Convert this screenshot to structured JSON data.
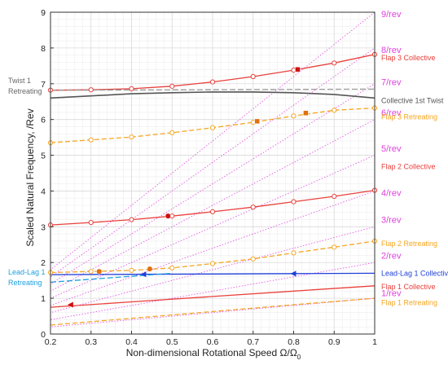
{
  "chart_data": {
    "type": "line",
    "xlabel_main": "Non-dimensional Rotational Speed Ω/Ω",
    "xlabel_sub": "0",
    "ylabel": "Scaled Natural Frequency, /Rev",
    "xlim": [
      0.2,
      1.0
    ],
    "ylim": [
      0,
      9
    ],
    "xticks": [
      "0.2",
      "0.3",
      "0.4",
      "0.5",
      "0.6",
      "0.7",
      "0.8",
      "0.9",
      "1"
    ],
    "yticks": [
      "0",
      "1",
      "2",
      "3",
      "4",
      "5",
      "6",
      "7",
      "8",
      "9"
    ],
    "grid": true,
    "per_rev": [
      {
        "n": 1,
        "label": "1/rev",
        "color": "#e040e0",
        "label_y": 1.15
      },
      {
        "n": 2,
        "label": "2/rev",
        "color": "#e040e0",
        "label_y": 2.2
      },
      {
        "n": 3,
        "label": "3/rev",
        "color": "#e040e0",
        "label_y": 3.2
      },
      {
        "n": 4,
        "label": "4/rev",
        "color": "#e040e0",
        "label_y": 3.95
      },
      {
        "n": 5,
        "label": "5/rev",
        "color": "#e040e0",
        "label_y": 5.2
      },
      {
        "n": 6,
        "label": "6/rev",
        "color": "#e040e0",
        "label_y": 6.2
      },
      {
        "n": 7,
        "label": "7/rev",
        "color": "#e040e0",
        "label_y": 7.05
      },
      {
        "n": 8,
        "label": "8/rev",
        "color": "#e040e0",
        "label_y": 7.95
      },
      {
        "n": 9,
        "label": "9/rev",
        "color": "#e040e0",
        "label_y": 8.95
      }
    ],
    "series": [
      {
        "name": "Flap 3 Collective",
        "color": "#e8413c",
        "dash": "",
        "marker": "circle",
        "x": [
          0.2,
          0.3,
          0.4,
          0.5,
          0.6,
          0.7,
          0.8,
          0.9,
          1.0
        ],
        "y": [
          6.82,
          6.83,
          6.86,
          6.93,
          7.05,
          7.2,
          7.38,
          7.58,
          7.82
        ],
        "label_y": 7.75
      },
      {
        "name": "Collective 1st Twist",
        "color": "#555555",
        "dash": "",
        "marker": "none",
        "x": [
          0.2,
          0.3,
          0.4,
          0.5,
          0.6,
          0.7,
          0.8,
          0.9,
          1.0
        ],
        "y": [
          6.6,
          6.66,
          6.72,
          6.75,
          6.77,
          6.77,
          6.75,
          6.7,
          6.6
        ],
        "label_y": 6.55
      },
      {
        "name": "Flap 3 Retreating",
        "color": "#f5a623",
        "dash": "6,3",
        "marker": "circle",
        "x": [
          0.2,
          0.3,
          0.4,
          0.5,
          0.6,
          0.7,
          0.8,
          0.9,
          1.0
        ],
        "y": [
          5.35,
          5.43,
          5.51,
          5.63,
          5.77,
          5.92,
          6.1,
          6.26,
          6.32
        ],
        "label_y": 6.1
      },
      {
        "name": "Flap 2 Collective",
        "color": "#e8413c",
        "dash": "",
        "marker": "circle",
        "x": [
          0.2,
          0.3,
          0.4,
          0.5,
          0.6,
          0.7,
          0.8,
          0.9,
          1.0
        ],
        "y": [
          3.05,
          3.12,
          3.2,
          3.3,
          3.42,
          3.55,
          3.7,
          3.85,
          4.02
        ],
        "label_y": 4.7
      },
      {
        "name": "Flap 2 Retreating",
        "color": "#f5a623",
        "dash": "6,3",
        "marker": "circle",
        "x": [
          0.2,
          0.3,
          0.4,
          0.5,
          0.6,
          0.7,
          0.8,
          0.9,
          1.0
        ],
        "y": [
          1.72,
          1.75,
          1.78,
          1.85,
          1.97,
          2.1,
          2.27,
          2.43,
          2.6
        ],
        "label_y": 2.55
      },
      {
        "name": "Lead-Lag 1 Collective",
        "color": "#1f3fd8",
        "dash": "",
        "marker": "none",
        "x": [
          0.2,
          0.4,
          0.6,
          0.8,
          1.0
        ],
        "y": [
          1.66,
          1.67,
          1.68,
          1.69,
          1.7
        ],
        "label_y": 1.72
      },
      {
        "name": "Flap 1 Collective",
        "color": "#e8413c",
        "dash": "",
        "marker": "none",
        "x": [
          0.2,
          0.4,
          0.6,
          0.8,
          1.0
        ],
        "y": [
          0.75,
          0.9,
          1.05,
          1.2,
          1.35
        ],
        "label_y": 1.35
      },
      {
        "name": "Flap 1 Retreating",
        "color": "#f5a623",
        "dash": "6,3",
        "marker": "none",
        "x": [
          0.2,
          0.4,
          0.6,
          0.8,
          1.0
        ],
        "y": [
          0.25,
          0.44,
          0.63,
          0.82,
          1.0
        ],
        "label_y": 0.9
      },
      {
        "name": "Twist 1 Retreating",
        "color": "#999999",
        "dash": "7,3",
        "marker": "none",
        "x": [
          0.2,
          1.0
        ],
        "y": [
          6.82,
          6.85
        ],
        "label_y": 6.9
      },
      {
        "name": "Lead-Lag 1 Retreating",
        "color": "#1ea0e0",
        "dash": "7,3",
        "marker": "none",
        "x": [
          0.2,
          0.5
        ],
        "y": [
          1.45,
          1.7
        ],
        "label_y": 1.55
      }
    ],
    "left_labels": [
      {
        "lines": [
          "Twist 1",
          "Retreating"
        ],
        "color": "#666666",
        "series": "Twist 1 Retreating"
      },
      {
        "lines": [
          "Lead-Lag 1",
          "Retreating"
        ],
        "color": "#1ea0e0",
        "series": "Lead-Lag 1 Retreating"
      }
    ],
    "highlight_markers": [
      {
        "x": 0.81,
        "y": 7.4,
        "color": "#cc1111",
        "shape": "square"
      },
      {
        "x": 0.71,
        "y": 5.95,
        "color": "#e07010",
        "shape": "square"
      },
      {
        "x": 0.83,
        "y": 6.18,
        "color": "#e07010",
        "shape": "square"
      },
      {
        "x": 0.49,
        "y": 3.3,
        "color": "#cc1111",
        "shape": "circle"
      },
      {
        "x": 0.32,
        "y": 1.75,
        "color": "#e07010",
        "shape": "circle"
      },
      {
        "x": 0.445,
        "y": 1.82,
        "color": "#e07010",
        "shape": "circle"
      },
      {
        "x": 0.25,
        "y": 0.82,
        "color": "#cc1111",
        "shape": "triangle-left"
      },
      {
        "x": 0.43,
        "y": 1.67,
        "color": "#1f3fd8",
        "shape": "triangle-left"
      },
      {
        "x": 0.8,
        "y": 1.69,
        "color": "#1f3fd8",
        "shape": "triangle-left"
      }
    ]
  }
}
